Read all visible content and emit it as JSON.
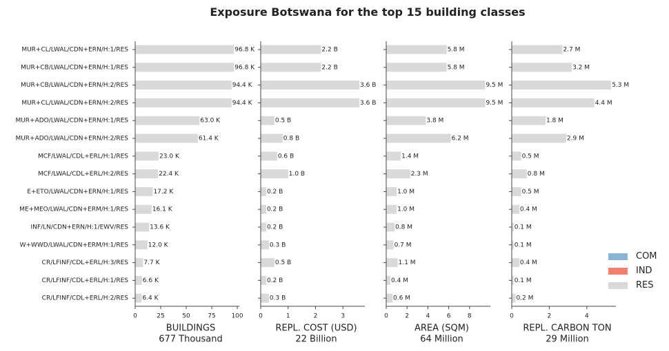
{
  "title": "Exposure Botswana for the top 15 building classes",
  "colors": {
    "COM": "#8ab4d3",
    "IND": "#f08070",
    "RES": "#d9d9d9"
  },
  "legend": [
    {
      "label": "COM",
      "color": "#8ab4d3"
    },
    {
      "label": "IND",
      "color": "#f08070"
    },
    {
      "label": "RES",
      "color": "#d9d9d9"
    }
  ],
  "chart_data": {
    "type": "bar",
    "orientation": "horizontal",
    "categories": [
      "MUR+CL/LWAL/CDN+ERN/H:1/RES",
      "MUR+CB/LWAL/CDN+ERN/H:1/RES",
      "MUR+CB/LWAL/CDN+ERN/H:2/RES",
      "MUR+CL/LWAL/CDN+ERN/H:2/RES",
      "MUR+ADO/LWAL/CDN+ERN/H:1/RES",
      "MUR+ADO/LWAL/CDN+ERN/H:2/RES",
      "MCF/LWAL/CDL+ERL/H:1/RES",
      "MCF/LWAL/CDL+ERL/H:2/RES",
      "E+ETO/LWAL/CDN+ERN/H:1/RES",
      "ME+MEO/LWAL/CDN+ERM/H:1/RES",
      "INF/LN/CDN+ERN/H:1/EWV/RES",
      "W+WWD/LWAL/CDN+ERM/H:1/RES",
      "CR/LFINF/CDL+ERL/H:3/RES",
      "CR/LFINF/CDL+ERL/H:1/RES",
      "CR/LFINF/CDL+ERL/H:2/RES"
    ],
    "panels": [
      {
        "xlabel": "BUILDINGS",
        "total": "677 Thousand",
        "unit_suffix": "K",
        "xlim": [
          0,
          102
        ],
        "ticks": [
          0,
          25,
          50,
          75,
          100
        ],
        "values": [
          96.8,
          96.8,
          94.4,
          94.4,
          63.0,
          61.4,
          23.0,
          22.4,
          17.2,
          16.1,
          13.6,
          12.0,
          7.7,
          6.6,
          6.4
        ],
        "value_labels": [
          "96.8 K",
          "96.8 K",
          "94.4 K",
          "94.4 K",
          "63.0 K",
          "61.4 K",
          "23.0 K",
          "22.4 K",
          "17.2 K",
          "16.1 K",
          "13.6 K",
          "12.0 K",
          "7.7 K",
          "6.6 K",
          "6.4 K"
        ]
      },
      {
        "xlabel": "REPL. COST (USD)",
        "total": "22 Billion",
        "xlim": [
          0,
          3.8
        ],
        "ticks": [
          0,
          1,
          2,
          3
        ],
        "values": [
          2.2,
          2.2,
          3.6,
          3.6,
          0.5,
          0.8,
          0.6,
          1.0,
          0.2,
          0.2,
          0.2,
          0.3,
          0.5,
          0.2,
          0.3
        ],
        "value_labels": [
          "2.2 B",
          "2.2 B",
          "3.6 B",
          "3.6 B",
          "0.5 B",
          "0.8 B",
          "0.6 B",
          "1.0 B",
          "0.2 B",
          "0.2 B",
          "0.2 B",
          "0.3 B",
          "0.5 B",
          "0.2 B",
          "0.3 B"
        ]
      },
      {
        "xlabel": "AREA (SQM)",
        "total": "64 Million",
        "xlim": [
          0,
          10
        ],
        "ticks": [
          0,
          2,
          4,
          6,
          8
        ],
        "values": [
          5.8,
          5.8,
          9.5,
          9.5,
          3.8,
          6.2,
          1.4,
          2.3,
          1.0,
          1.0,
          0.8,
          0.7,
          1.1,
          0.4,
          0.6
        ],
        "value_labels": [
          "5.8 M",
          "5.8 M",
          "9.5 M",
          "9.5 M",
          "3.8 M",
          "6.2 M",
          "1.4 M",
          "2.3 M",
          "1.0 M",
          "1.0 M",
          "0.8 M",
          "0.7 M",
          "1.1 M",
          "0.4 M",
          "0.6 M"
        ]
      },
      {
        "xlabel": "REPL. CARBON TON",
        "total": "29 Million",
        "xlim": [
          0,
          5.55
        ],
        "ticks": [
          0,
          2,
          4
        ],
        "values": [
          2.7,
          3.2,
          5.3,
          4.4,
          1.8,
          2.9,
          0.5,
          0.8,
          0.5,
          0.4,
          0.1,
          0.1,
          0.4,
          0.1,
          0.2
        ],
        "value_labels": [
          "2.7 M",
          "3.2 M",
          "5.3 M",
          "4.4 M",
          "1.8 M",
          "2.9 M",
          "0.5 M",
          "0.8 M",
          "0.5 M",
          "0.4 M",
          "0.1 M",
          "0.1 M",
          "0.4 M",
          "0.1 M",
          "0.2 M"
        ]
      }
    ],
    "series": [
      {
        "name": "RES",
        "color": "#d9d9d9"
      }
    ],
    "grid": false,
    "legend_position": "right"
  }
}
